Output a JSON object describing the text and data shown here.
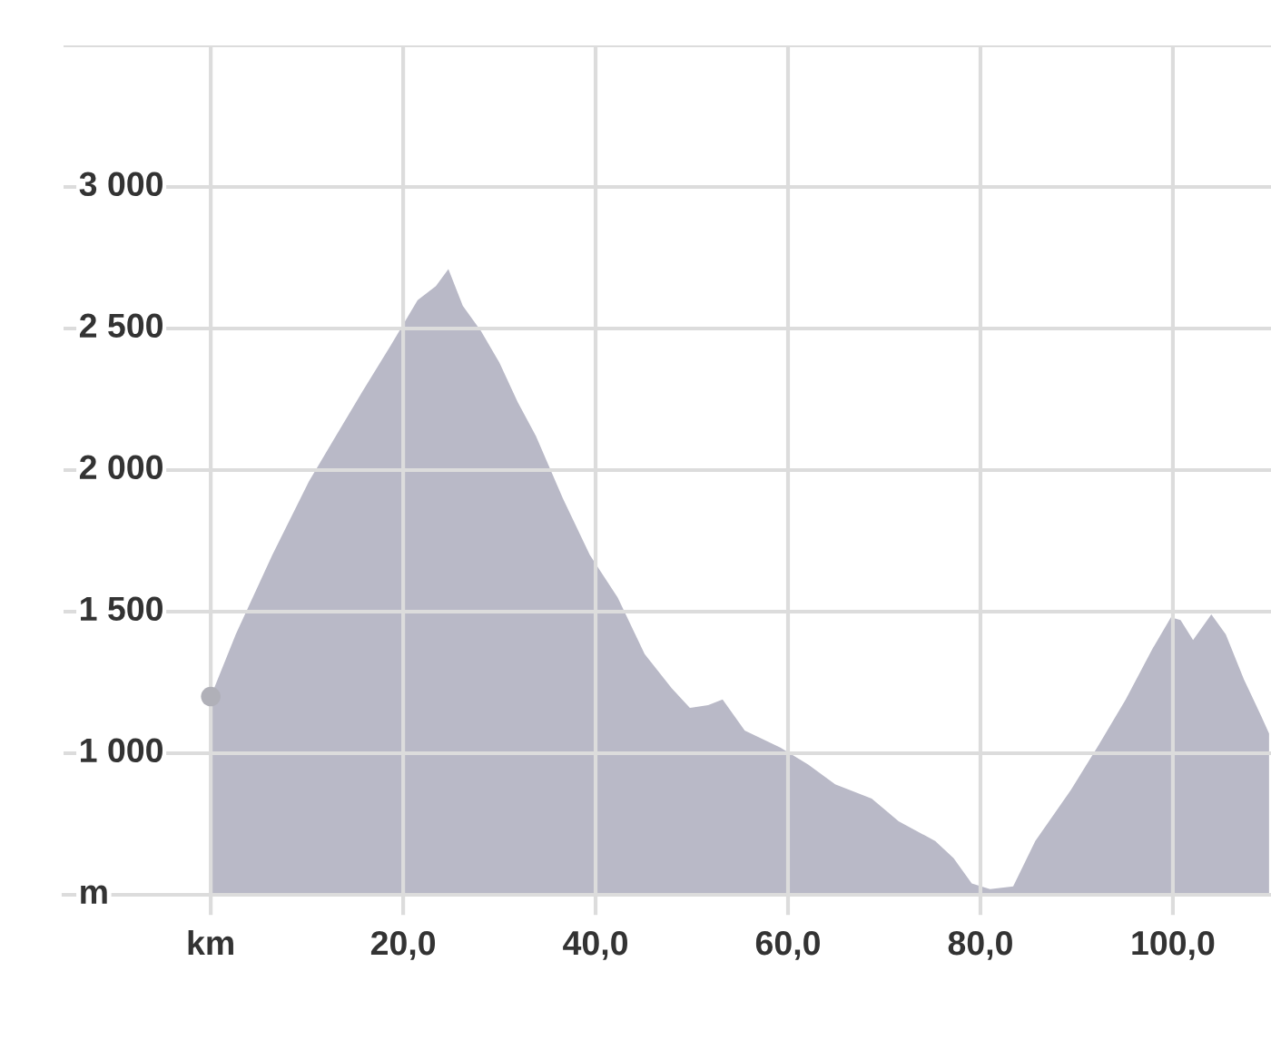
{
  "chart_data": {
    "type": "area",
    "x": [
      0,
      2.6,
      6.4,
      10.2,
      13,
      15.8,
      18.7,
      21.5,
      23.4,
      24.7,
      26.2,
      28.1,
      30,
      31.9,
      33.8,
      36.6,
      39.4,
      42.3,
      45.1,
      47.9,
      49.8,
      51.7,
      53.2,
      55.5,
      59.2,
      62.1,
      64.9,
      68.7,
      71.5,
      75.3,
      77.2,
      79.1,
      81,
      83.4,
      85.7,
      89.4,
      92.3,
      95.1,
      97.9,
      99.8,
      100.8,
      102.1,
      104,
      105.5,
      107.4,
      109.2,
      110
    ],
    "series": [
      {
        "type": "area",
        "color": "#b9b9c7",
        "values": [
          1200,
          1420,
          1700,
          1960,
          2120,
          2280,
          2440,
          2600,
          2650,
          2710,
          2580,
          2490,
          2380,
          2240,
          2120,
          1900,
          1700,
          1550,
          1350,
          1230,
          1160,
          1170,
          1190,
          1080,
          1020,
          960,
          890,
          840,
          760,
          690,
          630,
          540,
          520,
          530,
          690,
          870,
          1030,
          1190,
          1370,
          1480,
          1470,
          1400,
          1490,
          1420,
          1260,
          1130,
          1070
        ]
      },
      {
        "type": "scatter",
        "color": "#b0b0b8",
        "marker": "circle",
        "x": [
          0
        ],
        "values": [
          1200
        ]
      }
    ],
    "xlim": [
      -15.3,
      110.2
    ],
    "xticks": [
      {
        "value": 0,
        "label": "km"
      },
      {
        "value": 20,
        "label": "20,0"
      },
      {
        "value": 40,
        "label": "40,0"
      },
      {
        "value": 60,
        "label": "60,0"
      },
      {
        "value": 80,
        "label": "80,0"
      },
      {
        "value": 100,
        "label": "100,0"
      }
    ],
    "ylim": [
      500,
      3500
    ],
    "yticks": [
      {
        "value": 500,
        "label": "m"
      },
      {
        "value": 1000,
        "label": "1 000"
      },
      {
        "value": 1500,
        "label": "1 500"
      },
      {
        "value": 2000,
        "label": "2 000"
      },
      {
        "value": 2500,
        "label": "2 500"
      },
      {
        "value": 3000,
        "label": "3 000"
      },
      {
        "value": 3500,
        "label": null
      }
    ],
    "grid": true
  }
}
